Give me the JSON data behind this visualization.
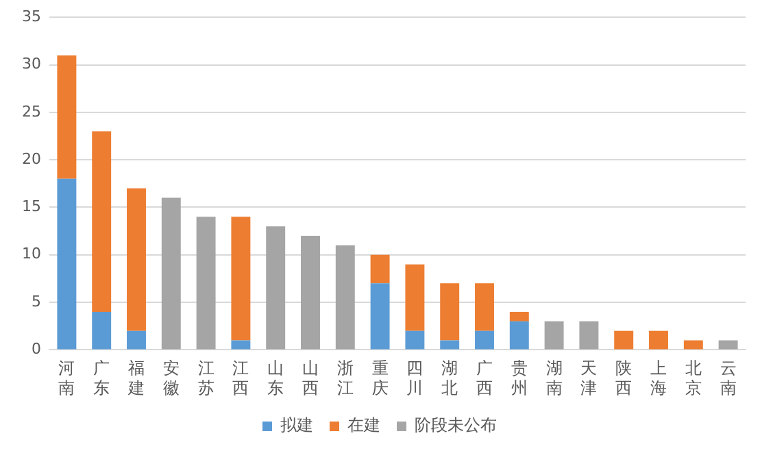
{
  "chart_data": {
    "type": "bar",
    "stacked": true,
    "categories": [
      "河南",
      "广东",
      "福建",
      "安徽",
      "江苏",
      "江西",
      "山东",
      "山西",
      "浙江",
      "重庆",
      "四川",
      "湖北",
      "广西",
      "贵州",
      "湖南",
      "天津",
      "陕西",
      "上海",
      "北京",
      "云南"
    ],
    "series": [
      {
        "name": "拟建",
        "color": "#5b9bd5",
        "values": [
          18,
          4,
          2,
          0,
          0,
          1,
          0,
          0,
          0,
          7,
          2,
          1,
          2,
          3,
          0,
          0,
          0,
          0,
          0,
          0
        ]
      },
      {
        "name": "在建",
        "color": "#ed7d31",
        "values": [
          13,
          19,
          15,
          0,
          0,
          13,
          0,
          0,
          0,
          3,
          7,
          6,
          5,
          1,
          0,
          0,
          2,
          2,
          1,
          0
        ]
      },
      {
        "name": "阶段未公布",
        "color": "#a5a5a5",
        "values": [
          0,
          0,
          0,
          16,
          14,
          0,
          13,
          12,
          11,
          0,
          0,
          0,
          0,
          0,
          3,
          3,
          0,
          0,
          0,
          1
        ]
      }
    ],
    "ylim": [
      0,
      35
    ],
    "yticks": [
      0,
      5,
      10,
      15,
      20,
      25,
      30,
      35
    ],
    "grid": "y",
    "legend": "bottom"
  }
}
